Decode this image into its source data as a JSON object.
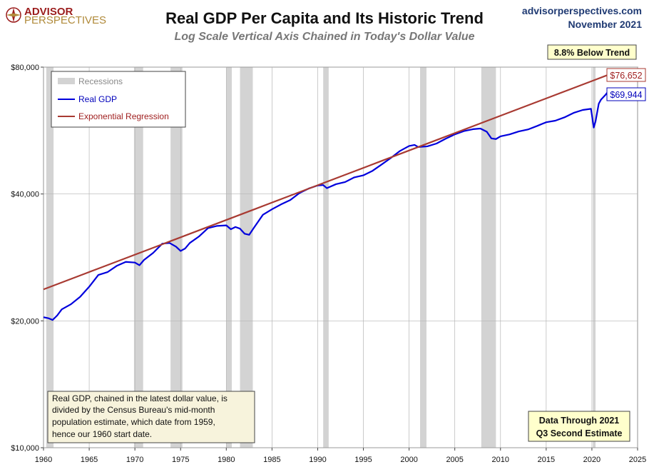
{
  "logo": {
    "line1": "ADVISOR",
    "line2": "PERSPECTIVES"
  },
  "header": {
    "title": "Real GDP Per Capita and Its Historic Trend",
    "subtitle": "Log Scale Vertical Axis Chained in Today's Dollar Value",
    "site": "advisorperspectives.com",
    "date": "November 2021"
  },
  "annotations": {
    "below_trend": "8.8% Below Trend",
    "trend_value": "$76,652",
    "gdp_value": "$69,944",
    "footnote_lines": [
      "Real GDP, chained in  the latest dollar value, is",
      "divided by the Census Bureau's mid-month",
      "population estimate, which date from 1959,",
      "hence our 1960 start date."
    ],
    "data_through_lines": [
      "Data Through 2021",
      "Q3 Second Estimate"
    ]
  },
  "colors": {
    "real_gdp": "#0000dd",
    "regression": "#a83a32",
    "recession": "#d3d3d3",
    "note_box": "#f7f3dc",
    "trend_box": "#ffffcc"
  },
  "chart_data": {
    "type": "line",
    "title": "Real GDP Per Capita and Its Historic Trend",
    "subtitle": "Log Scale Vertical Axis Chained in Today's Dollar Value",
    "y_scale": "log",
    "ylim": [
      10000,
      80000
    ],
    "xlim": [
      1960,
      2025
    ],
    "x_ticks": [
      "1960",
      "1965",
      "1970",
      "1975",
      "1980",
      "1985",
      "1990",
      "1995",
      "2000",
      "2005",
      "2010",
      "2015",
      "2020",
      "2025"
    ],
    "y_ticks": [
      "$10,000",
      "$20,000",
      "$40,000",
      "$80,000"
    ],
    "y_tick_values": [
      10000,
      20000,
      40000,
      80000
    ],
    "grid": true,
    "legend": {
      "placement": "top-left",
      "entries": [
        "Recessions",
        "Real GDP",
        "Exponential Regression"
      ]
    },
    "recessions": [
      [
        1960.3,
        1961.1
      ],
      [
        1969.9,
        1970.9
      ],
      [
        1973.9,
        1975.2
      ],
      [
        1980.0,
        1980.6
      ],
      [
        1981.5,
        1982.9
      ],
      [
        1990.6,
        1991.2
      ],
      [
        2001.2,
        2001.9
      ],
      [
        2007.9,
        2009.5
      ],
      [
        2020.1,
        2020.4
      ]
    ],
    "series": [
      {
        "name": "Real GDP",
        "x": [
          1960,
          1960.5,
          1961,
          1961.5,
          1962,
          1963,
          1964,
          1965,
          1966,
          1967,
          1968,
          1969,
          1970,
          1970.5,
          1971,
          1972,
          1973,
          1973.8,
          1974.5,
          1975,
          1975.5,
          1976,
          1977,
          1978,
          1979,
          1980,
          1980.5,
          1981,
          1981.5,
          1982,
          1982.5,
          1983,
          1984,
          1985,
          1986,
          1987,
          1988,
          1989,
          1990,
          1990.6,
          1991,
          1992,
          1993,
          1994,
          1995,
          1996,
          1997,
          1998,
          1999,
          2000,
          2000.6,
          2001,
          2002,
          2003,
          2004,
          2005,
          2006,
          2007,
          2007.8,
          2008.5,
          2009,
          2009.5,
          2010,
          2011,
          2012,
          2013,
          2014,
          2015,
          2016,
          2017,
          2018,
          2019,
          2019.9,
          2020.2,
          2020.4,
          2020.75,
          2021,
          2021.5,
          2021.75
        ],
        "values": [
          20400,
          20300,
          20100,
          20600,
          21300,
          21900,
          22800,
          24100,
          25700,
          26100,
          27000,
          27600,
          27500,
          27100,
          27900,
          29000,
          30500,
          30600,
          30000,
          29300,
          29700,
          30600,
          31700,
          33200,
          33600,
          33700,
          33000,
          33400,
          33100,
          32200,
          32000,
          33200,
          35700,
          36800,
          37800,
          38700,
          40200,
          41200,
          41900,
          42000,
          41300,
          42200,
          42700,
          43800,
          44300,
          45400,
          47000,
          48700,
          50600,
          52000,
          52300,
          51700,
          51900,
          52700,
          54100,
          55400,
          56400,
          57000,
          57200,
          56200,
          54200,
          54000,
          54800,
          55400,
          56300,
          56900,
          58000,
          59200,
          59700,
          60800,
          62300,
          63300,
          63700,
          57500,
          59500,
          65500,
          67000,
          68800,
          69944
        ]
      },
      {
        "name": "Exponential Regression",
        "x": [
          1960,
          2021.75
        ],
        "values": [
          23750,
          76652
        ]
      }
    ]
  }
}
